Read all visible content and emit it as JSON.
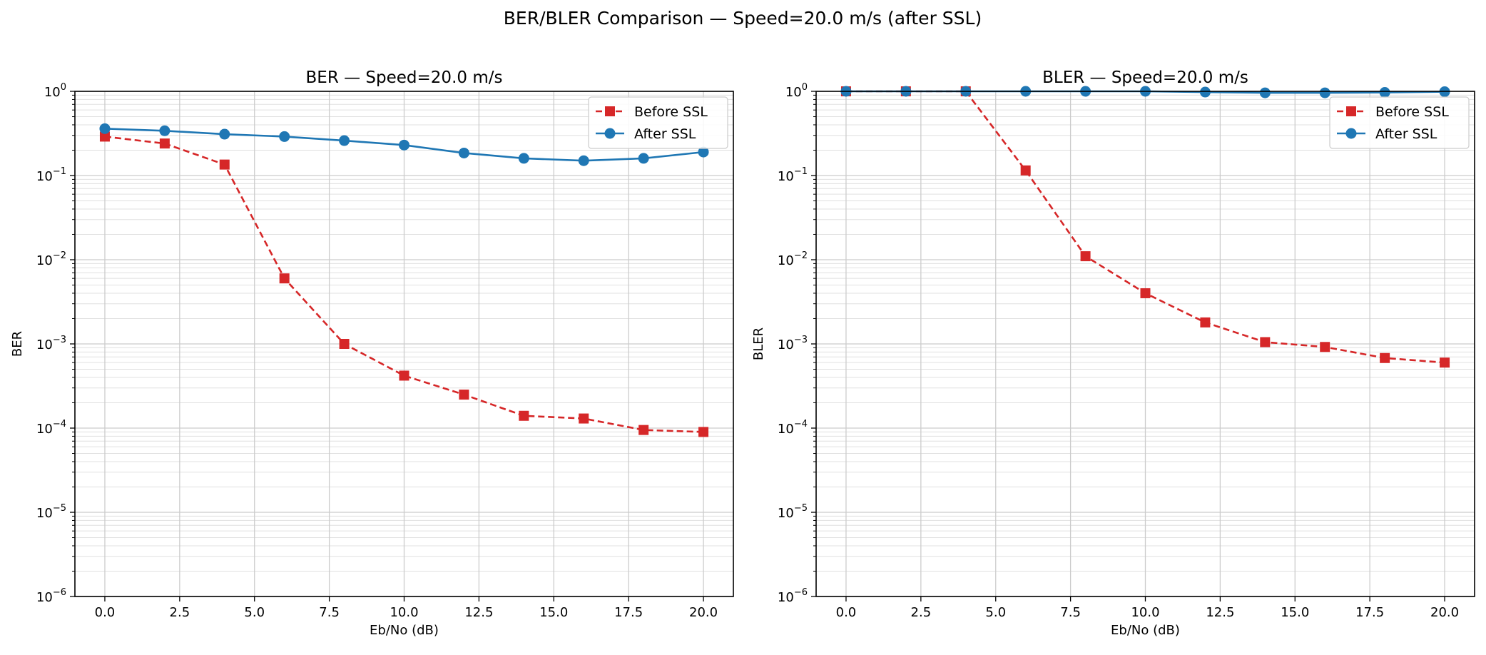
{
  "figure_title": "BER/BLER Comparison — Speed=20.0 m/s (after SSL)",
  "colors": {
    "before": "#d62728",
    "after": "#1f77b4",
    "grid": "#cccccc"
  },
  "chart_data": [
    {
      "type": "line",
      "title": "BER — Speed=20.0 m/s",
      "xlabel": "Eb/No (dB)",
      "ylabel": "BER",
      "yscale": "log",
      "xlim": [
        -1,
        21
      ],
      "ylim": [
        1e-06,
        1
      ],
      "xticks": [
        0,
        2.5,
        5,
        7.5,
        10,
        12.5,
        15,
        17.5,
        20
      ],
      "xtick_labels": [
        "0.0",
        "2.5",
        "5.0",
        "7.5",
        "10.0",
        "12.5",
        "15.0",
        "17.5",
        "20.0"
      ],
      "ytick_exponents": [
        "-6",
        "-5",
        "-4",
        "-3",
        "-2",
        "-1",
        "0"
      ],
      "grid": true,
      "legend": "top-right",
      "x": [
        0,
        2,
        4,
        6,
        8,
        10,
        12,
        14,
        16,
        18,
        20
      ],
      "series": [
        {
          "name": "Before SSL",
          "style": "dashed",
          "marker": "square",
          "color": "#d62728",
          "values": [
            0.29,
            0.24,
            0.135,
            0.006,
            0.001,
            0.00042,
            0.00025,
            0.00014,
            0.00013,
            9.5e-05,
            9e-05
          ]
        },
        {
          "name": "After SSL",
          "style": "solid",
          "marker": "circle",
          "color": "#1f77b4",
          "values": [
            0.36,
            0.34,
            0.31,
            0.29,
            0.26,
            0.23,
            0.185,
            0.16,
            0.15,
            0.16,
            0.19
          ]
        }
      ]
    },
    {
      "type": "line",
      "title": "BLER — Speed=20.0 m/s",
      "xlabel": "Eb/No (dB)",
      "ylabel": "BLER",
      "yscale": "log",
      "xlim": [
        -1,
        21
      ],
      "ylim": [
        1e-06,
        1
      ],
      "xticks": [
        0,
        2.5,
        5,
        7.5,
        10,
        12.5,
        15,
        17.5,
        20
      ],
      "xtick_labels": [
        "0.0",
        "2.5",
        "5.0",
        "7.5",
        "10.0",
        "12.5",
        "15.0",
        "17.5",
        "20.0"
      ],
      "ytick_exponents": [
        "-6",
        "-5",
        "-4",
        "-3",
        "-2",
        "-1",
        "0"
      ],
      "grid": true,
      "legend": "top-right",
      "x": [
        0,
        2,
        4,
        6,
        8,
        10,
        12,
        14,
        16,
        18,
        20
      ],
      "series": [
        {
          "name": "Before SSL",
          "style": "dashed",
          "marker": "square",
          "color": "#d62728",
          "values": [
            1.0,
            1.0,
            1.0,
            0.115,
            0.011,
            0.004,
            0.0018,
            0.00105,
            0.00092,
            0.00068,
            0.0006
          ]
        },
        {
          "name": "After SSL",
          "style": "solid",
          "marker": "circle",
          "color": "#1f77b4",
          "values": [
            1.0,
            1.0,
            1.0,
            1.0,
            1.0,
            1.0,
            0.98,
            0.96,
            0.96,
            0.97,
            0.99
          ]
        }
      ]
    }
  ]
}
